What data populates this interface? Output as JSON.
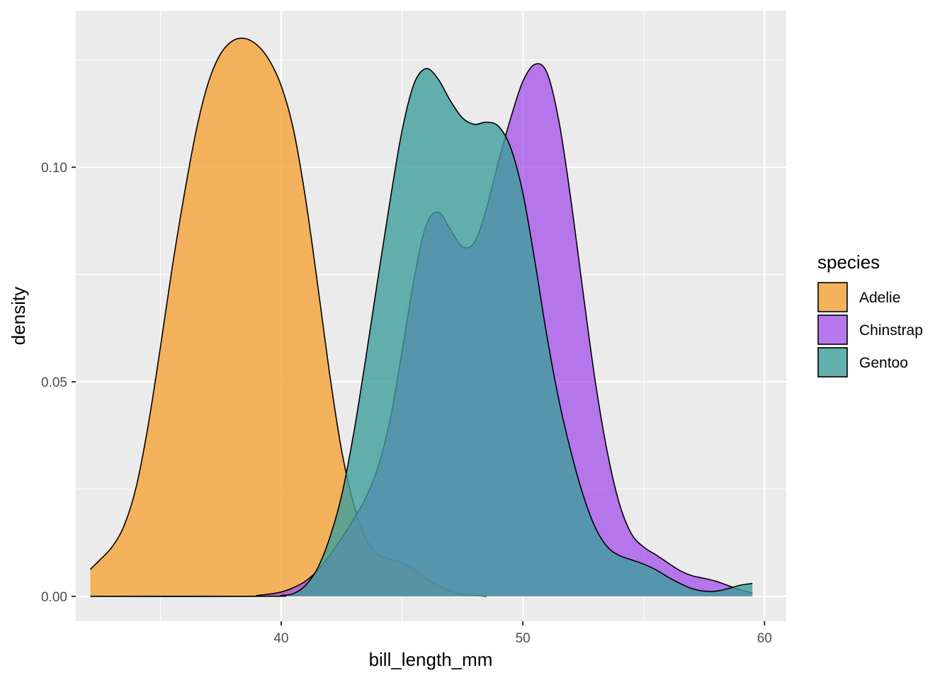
{
  "chart_data": {
    "type": "area",
    "title": "",
    "xlabel": "bill_length_mm",
    "ylabel": "density",
    "xlim": [
      31.5,
      60.9
    ],
    "ylim": [
      -0.0058,
      0.1365
    ],
    "x_ticks": [
      40,
      50,
      60
    ],
    "x_tick_labels": [
      "40",
      "50",
      "60"
    ],
    "x_minor_ticks": [
      35,
      45,
      55
    ],
    "y_ticks": [
      0.0,
      0.05,
      0.1
    ],
    "y_tick_labels": [
      "0.00",
      "0.05",
      "0.10"
    ],
    "y_minor_ticks": [
      0.025,
      0.075,
      0.125
    ],
    "grid": true,
    "legend": {
      "title": "species",
      "position": "right"
    },
    "series": [
      {
        "name": "Adelie",
        "color": "#F5A742",
        "fill_opacity": 0.85,
        "x": [
          32.1,
          32.5,
          33,
          33.5,
          34,
          34.5,
          35,
          35.5,
          36,
          36.5,
          37,
          37.5,
          38,
          38.5,
          39,
          39.5,
          40,
          40.5,
          41,
          41.5,
          42,
          42.5,
          43,
          43.5,
          44,
          44.5,
          45,
          45.5,
          46,
          46.5,
          47,
          47.5,
          48,
          48.5
        ],
        "y": [
          0.0063,
          0.0085,
          0.0115,
          0.0165,
          0.0255,
          0.04,
          0.058,
          0.077,
          0.094,
          0.109,
          0.12,
          0.1265,
          0.1295,
          0.13,
          0.1285,
          0.125,
          0.119,
          0.109,
          0.093,
          0.073,
          0.052,
          0.034,
          0.0215,
          0.0135,
          0.0098,
          0.0087,
          0.0078,
          0.0062,
          0.0042,
          0.0025,
          0.0012,
          0.0005,
          0.0002,
          0.0
        ]
      },
      {
        "name": "Chinstrap",
        "color": "#A34EEB",
        "fill_opacity": 0.75,
        "x": [
          32.1,
          38.5,
          39,
          39.5,
          40,
          40.5,
          41,
          41.5,
          42,
          42.5,
          43,
          43.5,
          44,
          44.5,
          45,
          45.5,
          46,
          46.5,
          47,
          47.5,
          48,
          48.5,
          49,
          49.5,
          50,
          50.5,
          51,
          51.5,
          52,
          52.5,
          53,
          53.5,
          54,
          54.5,
          55,
          55.5,
          56,
          56.5,
          57,
          57.5,
          58,
          58.5,
          59,
          59.5
        ],
        "y": [
          0.0,
          0.0,
          0.0002,
          0.0005,
          0.001,
          0.002,
          0.0035,
          0.006,
          0.0095,
          0.0135,
          0.018,
          0.023,
          0.03,
          0.041,
          0.057,
          0.074,
          0.0865,
          0.0895,
          0.0855,
          0.0815,
          0.0825,
          0.0905,
          0.1015,
          0.1115,
          0.12,
          0.124,
          0.122,
          0.1105,
          0.092,
          0.0705,
          0.05,
          0.0335,
          0.0215,
          0.0145,
          0.0115,
          0.0097,
          0.0078,
          0.006,
          0.0048,
          0.0042,
          0.0035,
          0.0025,
          0.0015,
          0.0008
        ]
      },
      {
        "name": "Gentoo",
        "color": "#3E9F9C",
        "fill_opacity": 0.8,
        "x": [
          32.1,
          39.5,
          40,
          40.5,
          41,
          41.5,
          42,
          42.5,
          43,
          43.5,
          44,
          44.5,
          45,
          45.5,
          46,
          46.5,
          47,
          47.5,
          48,
          48.5,
          49,
          49.5,
          50,
          50.5,
          51,
          51.5,
          52,
          52.5,
          53,
          53.5,
          54,
          54.5,
          55,
          55.5,
          56,
          56.5,
          57,
          57.5,
          58,
          58.5,
          59,
          59.5
        ],
        "y": [
          0.0,
          0.0,
          0.0002,
          0.0006,
          0.0025,
          0.0065,
          0.0135,
          0.0235,
          0.038,
          0.0555,
          0.074,
          0.092,
          0.1085,
          0.1195,
          0.123,
          0.1205,
          0.1155,
          0.1115,
          0.11,
          0.1105,
          0.1095,
          0.1045,
          0.094,
          0.078,
          0.0605,
          0.0455,
          0.0335,
          0.0235,
          0.016,
          0.0115,
          0.0095,
          0.0085,
          0.0075,
          0.0062,
          0.0045,
          0.003,
          0.0018,
          0.0012,
          0.0012,
          0.0018,
          0.0026,
          0.003
        ]
      }
    ]
  }
}
